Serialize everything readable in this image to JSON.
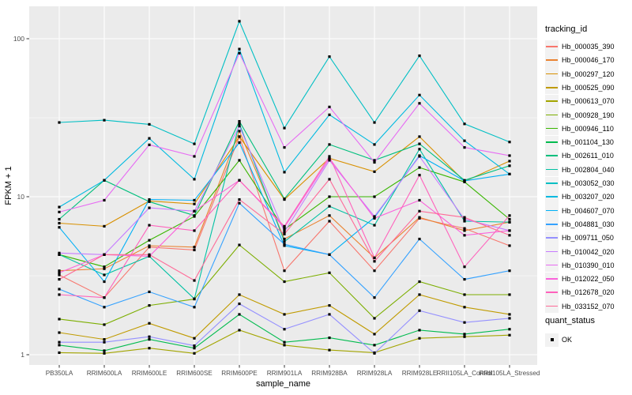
{
  "chart_data": {
    "type": "line",
    "title": "",
    "xlabel": "sample_name",
    "ylabel": "FPKM + 1",
    "x_categories": [
      "PB350LA",
      "RRIM600LA",
      "RRIM600LE",
      "RRIM600SE",
      "RRIM600PE",
      "RRIM901LA",
      "RRIM928BA",
      "RRIM928LA",
      "RRIM928LE",
      "RRII105LA_Control",
      "RRII105LA_Stressed"
    ],
    "y_scale": "log10",
    "y_ticks": [
      1,
      10,
      100
    ],
    "y_tick_labels": [
      "1",
      "10",
      "100"
    ],
    "y_minor_gridlines": [
      3.162,
      31.623
    ],
    "ylim": [
      1,
      160
    ],
    "grid": true,
    "legend_position": "right",
    "point_shape": "filled-square",
    "point_color": "#000000",
    "legend": {
      "tracking_title": "tracking_id",
      "quant_title": "quant_status",
      "quant_items": [
        {
          "label": "OK",
          "color": "#000000"
        }
      ]
    },
    "series": [
      {
        "name": "Hb_000035_390",
        "color": "#F8766D",
        "values": [
          3.2,
          2.3,
          4.8,
          4.6,
          24,
          3.4,
          7.0,
          3.4,
          7.3,
          6.3,
          4.9
        ]
      },
      {
        "name": "Hb_000046_170",
        "color": "#EA8331",
        "values": [
          3.4,
          3.5,
          4.9,
          4.8,
          26,
          5.4,
          7.6,
          4.1,
          7.4,
          6.1,
          6.9
        ]
      },
      {
        "name": "Hb_000297_120",
        "color": "#D89000",
        "values": [
          6.8,
          6.5,
          9.4,
          9.0,
          24,
          9.6,
          17.5,
          14.4,
          24,
          12.5,
          16.8
        ]
      },
      {
        "name": "Hb_000525_090",
        "color": "#C09B00",
        "values": [
          1.38,
          1.25,
          1.58,
          1.27,
          2.4,
          1.8,
          2.05,
          1.35,
          2.4,
          2.0,
          1.8
        ]
      },
      {
        "name": "Hb_000613_070",
        "color": "#A3A500",
        "values": [
          1.03,
          1.02,
          1.1,
          1.02,
          1.43,
          1.15,
          1.07,
          1.03,
          1.27,
          1.3,
          1.33
        ]
      },
      {
        "name": "Hb_000928_190",
        "color": "#7CAE00",
        "values": [
          1.68,
          1.55,
          2.05,
          2.25,
          4.95,
          2.9,
          3.3,
          1.7,
          2.9,
          2.4,
          2.4
        ]
      },
      {
        "name": "Hb_000946_110",
        "color": "#39B600",
        "values": [
          4.3,
          3.6,
          5.3,
          7.5,
          17,
          6.2,
          10,
          10,
          15.3,
          12.4,
          7.2
        ]
      },
      {
        "name": "Hb_001104_130",
        "color": "#00BB4E",
        "values": [
          1.15,
          1.06,
          1.25,
          1.1,
          1.8,
          1.2,
          1.28,
          1.15,
          1.43,
          1.35,
          1.45
        ]
      },
      {
        "name": "Hb_002611_010",
        "color": "#00BF7D",
        "values": [
          7.2,
          12.7,
          9.3,
          7.6,
          30,
          9.7,
          21.4,
          17,
          21.6,
          12.7,
          15.7
        ]
      },
      {
        "name": "Hb_002804_040",
        "color": "#00C1A3",
        "values": [
          4.3,
          3.2,
          4.2,
          2.26,
          29,
          5.2,
          8.7,
          6.6,
          20,
          7.0,
          6.9
        ]
      },
      {
        "name": "Hb_003052_030",
        "color": "#00BFC4",
        "values": [
          29.5,
          30.5,
          28.7,
          21.6,
          129,
          27.2,
          77,
          29.5,
          78,
          28.9,
          22.2
        ]
      },
      {
        "name": "Hb_003207_020",
        "color": "#00BAE0",
        "values": [
          8.6,
          12.7,
          23.4,
          12.9,
          86,
          14.3,
          33,
          21.4,
          44,
          22.6,
          13.9
        ]
      },
      {
        "name": "Hb_004607_070",
        "color": "#00B0F6",
        "values": [
          6.4,
          2.9,
          9.6,
          9.5,
          22,
          4.9,
          4.3,
          7.4,
          18.2,
          12.6,
          13.9
        ]
      },
      {
        "name": "Hb_004881_030",
        "color": "#35A2FF",
        "values": [
          2.6,
          2.0,
          2.5,
          2.0,
          9.1,
          5.0,
          4.3,
          2.3,
          5.4,
          3.0,
          3.4
        ]
      },
      {
        "name": "Hb_009711_050",
        "color": "#9590FF",
        "values": [
          1.2,
          1.2,
          1.3,
          1.14,
          2.1,
          1.45,
          1.8,
          1.02,
          1.9,
          1.6,
          1.7
        ]
      },
      {
        "name": "Hb_010042_020",
        "color": "#C77CFF",
        "values": [
          4.4,
          4.3,
          8.5,
          8.1,
          28,
          6.0,
          17,
          7.5,
          18,
          7.2,
          6.1
        ]
      },
      {
        "name": "Hb_010390_010",
        "color": "#E76BF3",
        "values": [
          8.0,
          9.5,
          21.3,
          18.0,
          81,
          20.5,
          37,
          16.5,
          39,
          20.5,
          18.2
        ]
      },
      {
        "name": "Hb_012022_050",
        "color": "#FA62DB",
        "values": [
          3.3,
          4.3,
          4.2,
          8.1,
          12.7,
          6.4,
          17.5,
          7.3,
          9.5,
          5.7,
          6.1
        ]
      },
      {
        "name": "Hb_012678_020",
        "color": "#FF62BC",
        "values": [
          2.4,
          2.3,
          6.6,
          6.1,
          12.7,
          6.5,
          18,
          4.1,
          13.7,
          3.6,
          7.6
        ]
      },
      {
        "name": "Hb_033152_070",
        "color": "#FF6A98",
        "values": [
          3.0,
          4.3,
          4.3,
          2.95,
          9.6,
          5.8,
          12.9,
          3.9,
          8.1,
          7.4,
          5.7
        ]
      }
    ]
  },
  "style": {
    "panel_background": "#EBEBEB",
    "gridline_color": "#FFFFFF",
    "axis_text_color": "#4D4D4D",
    "axis_title_color": "#000000",
    "tick_mark_color": "#333333",
    "legend_key_background": "#F2F2F2"
  }
}
